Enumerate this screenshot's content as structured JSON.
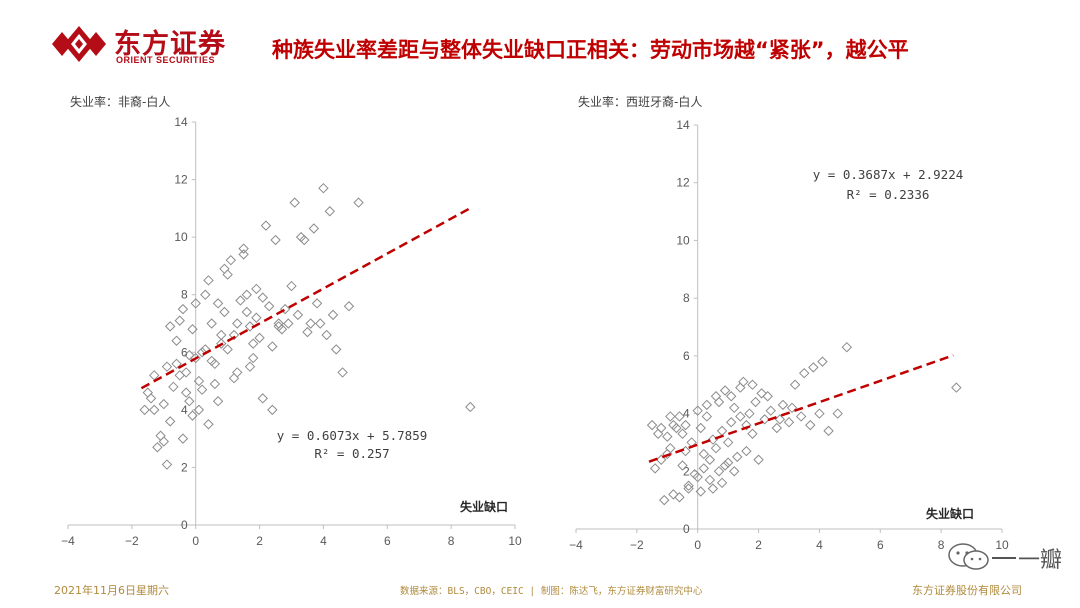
{
  "header": {
    "logo_cn": "东方证券",
    "logo_en": "ORIENT SECURITIES",
    "title": "种族失业率差距与整体失业缺口正相关：劳动市场越“紧张”，越公平"
  },
  "colors": {
    "brand": "#b50d18",
    "title": "#c00000",
    "marker": "#8c8c8c",
    "trendline": "#c00000",
    "axis": "#bfbfbf",
    "footer": "#b08a3c"
  },
  "chart_data": [
    {
      "type": "scatter",
      "ylabel": "失业率：非裔-白人",
      "xlabel": "失业缺口",
      "xlim": [
        -4,
        10
      ],
      "ylim": [
        0,
        14
      ],
      "xticks": [
        -4,
        -2,
        0,
        2,
        4,
        6,
        8,
        10
      ],
      "yticks": [
        0,
        2,
        4,
        6,
        8,
        10,
        12,
        14
      ],
      "trend_equation": "y = 0.6073x + 5.7859",
      "trend_r2": "R² = 0.257",
      "trendline": {
        "slope": 0.6073,
        "intercept": 5.7859,
        "x_range": [
          -1.7,
          8.6
        ]
      },
      "grid": false,
      "points": [
        [
          -1.6,
          4.0
        ],
        [
          -1.5,
          4.6
        ],
        [
          -1.4,
          4.4
        ],
        [
          -1.3,
          4.0
        ],
        [
          -1.2,
          2.7
        ],
        [
          -1.1,
          3.1
        ],
        [
          -1.0,
          2.9
        ],
        [
          -1.0,
          4.2
        ],
        [
          -0.9,
          2.1
        ],
        [
          -0.8,
          3.6
        ],
        [
          -0.7,
          4.8
        ],
        [
          -0.6,
          6.4
        ],
        [
          -0.5,
          7.1
        ],
        [
          -0.5,
          5.2
        ],
        [
          -0.4,
          3.0
        ],
        [
          -0.3,
          4.6
        ],
        [
          -0.2,
          5.9
        ],
        [
          -0.1,
          6.8
        ],
        [
          0.0,
          7.7
        ],
        [
          0.1,
          5.0
        ],
        [
          0.2,
          4.7
        ],
        [
          0.3,
          6.1
        ],
        [
          0.4,
          8.5
        ],
        [
          0.5,
          7.0
        ],
        [
          0.6,
          5.6
        ],
        [
          0.7,
          4.3
        ],
        [
          0.8,
          6.3
        ],
        [
          0.9,
          7.4
        ],
        [
          1.0,
          8.7
        ],
        [
          1.1,
          9.2
        ],
        [
          1.2,
          6.6
        ],
        [
          1.3,
          5.3
        ],
        [
          1.4,
          7.8
        ],
        [
          1.5,
          9.6
        ],
        [
          1.6,
          8.0
        ],
        [
          1.7,
          6.9
        ],
        [
          1.8,
          5.8
        ],
        [
          1.9,
          7.2
        ],
        [
          2.0,
          6.5
        ],
        [
          2.1,
          4.4
        ],
        [
          2.2,
          10.4
        ],
        [
          2.3,
          7.6
        ],
        [
          2.4,
          6.2
        ],
        [
          2.5,
          9.9
        ],
        [
          2.6,
          7.0
        ],
        [
          2.7,
          6.8
        ],
        [
          2.8,
          7.5
        ],
        [
          3.0,
          8.3
        ],
        [
          3.1,
          11.2
        ],
        [
          3.2,
          7.3
        ],
        [
          3.3,
          10.0
        ],
        [
          3.4,
          9.9
        ],
        [
          3.5,
          6.7
        ],
        [
          3.6,
          7.0
        ],
        [
          3.7,
          10.3
        ],
        [
          3.8,
          7.7
        ],
        [
          3.9,
          7.0
        ],
        [
          4.0,
          11.7
        ],
        [
          4.1,
          6.6
        ],
        [
          4.2,
          10.9
        ],
        [
          4.3,
          7.3
        ],
        [
          4.4,
          6.1
        ],
        [
          4.6,
          5.3
        ],
        [
          4.8,
          7.6
        ],
        [
          5.1,
          11.2
        ],
        [
          8.6,
          4.1
        ],
        [
          -0.6,
          5.6
        ],
        [
          -0.3,
          5.3
        ],
        [
          0.0,
          5.8
        ],
        [
          0.2,
          6.0
        ],
        [
          0.5,
          5.7
        ],
        [
          0.8,
          6.6
        ],
        [
          1.0,
          6.1
        ],
        [
          1.3,
          7.0
        ],
        [
          1.6,
          7.4
        ],
        [
          1.9,
          8.2
        ],
        [
          2.1,
          7.9
        ],
        [
          0.1,
          4.0
        ],
        [
          -0.2,
          4.3
        ],
        [
          0.6,
          4.9
        ],
        [
          1.2,
          5.1
        ],
        [
          1.7,
          5.5
        ],
        [
          2.4,
          4.0
        ],
        [
          -0.8,
          6.9
        ],
        [
          -0.4,
          7.5
        ],
        [
          0.3,
          8.0
        ],
        [
          0.9,
          8.9
        ],
        [
          1.5,
          9.4
        ],
        [
          -1.3,
          5.2
        ],
        [
          -0.9,
          5.5
        ],
        [
          0.7,
          7.7
        ],
        [
          1.8,
          6.3
        ],
        [
          2.6,
          6.9
        ],
        [
          2.9,
          7.0
        ],
        [
          0.4,
          3.5
        ],
        [
          -0.1,
          3.8
        ]
      ]
    },
    {
      "type": "scatter",
      "ylabel": "失业率：西班牙裔-白人",
      "xlabel": "失业缺口",
      "xlim": [
        -4,
        10
      ],
      "ylim": [
        0,
        14
      ],
      "xticks": [
        -4,
        -2,
        0,
        2,
        4,
        6,
        8,
        10
      ],
      "yticks": [
        0,
        2,
        4,
        6,
        8,
        10,
        12,
        14
      ],
      "trend_equation": "y = 0.3687x + 2.9224",
      "trend_r2": "R² = 0.2336",
      "trendline": {
        "slope": 0.3687,
        "intercept": 2.9224,
        "x_range": [
          -1.6,
          8.4
        ]
      },
      "grid": false,
      "points": [
        [
          -1.5,
          3.6
        ],
        [
          -1.4,
          2.1
        ],
        [
          -1.3,
          3.3
        ],
        [
          -1.2,
          2.4
        ],
        [
          -1.1,
          1.0
        ],
        [
          -1.0,
          3.2
        ],
        [
          -0.9,
          2.8
        ],
        [
          -0.8,
          1.2
        ],
        [
          -0.7,
          3.5
        ],
        [
          -0.6,
          3.9
        ],
        [
          -0.5,
          2.2
        ],
        [
          -0.4,
          3.6
        ],
        [
          -0.3,
          1.4
        ],
        [
          -0.2,
          3.0
        ],
        [
          -0.1,
          1.9
        ],
        [
          0.0,
          4.1
        ],
        [
          0.1,
          1.3
        ],
        [
          0.2,
          2.6
        ],
        [
          0.3,
          4.3
        ],
        [
          0.4,
          1.7
        ],
        [
          0.5,
          3.1
        ],
        [
          0.6,
          4.6
        ],
        [
          0.7,
          2.0
        ],
        [
          0.8,
          3.4
        ],
        [
          0.9,
          4.8
        ],
        [
          1.0,
          2.3
        ],
        [
          1.1,
          3.7
        ],
        [
          1.2,
          4.2
        ],
        [
          1.3,
          2.5
        ],
        [
          1.4,
          3.9
        ],
        [
          1.5,
          5.1
        ],
        [
          1.6,
          2.7
        ],
        [
          1.7,
          4.0
        ],
        [
          1.8,
          3.3
        ],
        [
          1.9,
          4.4
        ],
        [
          2.0,
          2.4
        ],
        [
          2.1,
          4.7
        ],
        [
          2.2,
          3.8
        ],
        [
          2.4,
          4.1
        ],
        [
          2.6,
          3.5
        ],
        [
          2.8,
          4.3
        ],
        [
          3.0,
          3.7
        ],
        [
          3.2,
          5.0
        ],
        [
          3.4,
          3.9
        ],
        [
          3.5,
          5.4
        ],
        [
          3.7,
          3.6
        ],
        [
          3.8,
          5.6
        ],
        [
          4.0,
          4.0
        ],
        [
          4.1,
          5.8
        ],
        [
          4.3,
          3.4
        ],
        [
          4.6,
          4.0
        ],
        [
          4.9,
          6.3
        ],
        [
          8.5,
          4.9
        ],
        [
          -0.6,
          1.1
        ],
        [
          -0.3,
          1.5
        ],
        [
          0.0,
          1.8
        ],
        [
          0.2,
          2.1
        ],
        [
          0.4,
          2.4
        ],
        [
          0.6,
          2.8
        ],
        [
          0.8,
          1.6
        ],
        [
          1.0,
          3.0
        ],
        [
          1.2,
          2.0
        ],
        [
          -1.0,
          2.6
        ],
        [
          -0.8,
          3.6
        ],
        [
          -0.5,
          3.3
        ],
        [
          0.1,
          3.5
        ],
        [
          0.3,
          3.9
        ],
        [
          0.7,
          4.4
        ],
        [
          1.1,
          4.6
        ],
        [
          1.4,
          4.9
        ],
        [
          1.8,
          5.0
        ],
        [
          2.3,
          4.6
        ],
        [
          2.7,
          3.8
        ],
        [
          3.1,
          4.2
        ],
        [
          -1.2,
          3.5
        ],
        [
          -0.9,
          3.9
        ],
        [
          -0.4,
          2.7
        ],
        [
          0.5,
          1.4
        ],
        [
          0.9,
          2.2
        ],
        [
          1.6,
          3.6
        ]
      ]
    }
  ],
  "footer": {
    "date": "2021年11月6日星期六",
    "source": "数据来源：BLS，CBO，CEIC | 制图：陈达飞，东方证券财富研究中心",
    "company": "东方证券股份有限公司"
  },
  "watermark": {
    "text": "一瓣"
  }
}
